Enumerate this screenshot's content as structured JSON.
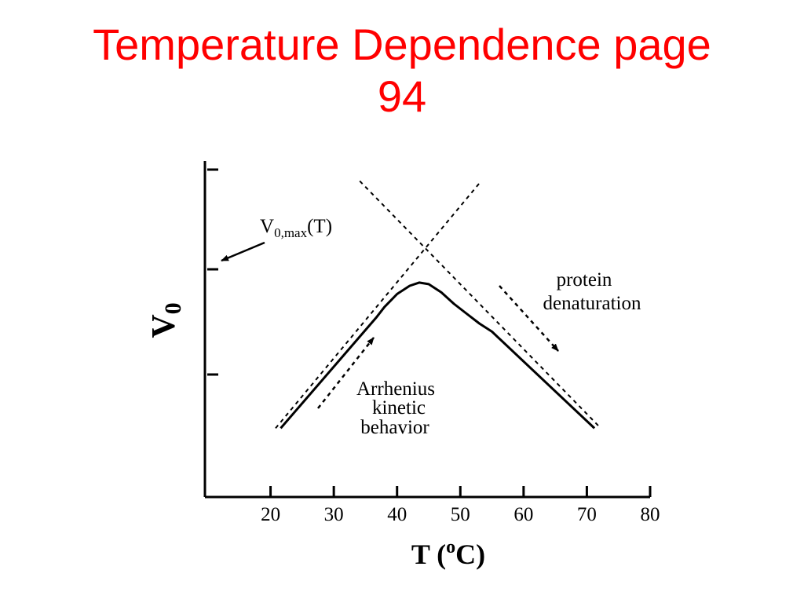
{
  "slide": {
    "title_line1": "Temperature Dependence page",
    "title_line2": "94",
    "title_color": "#ff0000"
  },
  "chart_data": {
    "type": "line",
    "xlabel": "T (",
    "xlabel_sup": "o",
    "xlabel_end": "C)",
    "ylabel": "V",
    "ylabel_sub": "0",
    "x_ticks": [
      20,
      30,
      40,
      50,
      60,
      70,
      80
    ],
    "xlim": [
      10,
      80
    ],
    "ylim": [
      0,
      1
    ],
    "y_ticks_labeled": false,
    "series": [
      {
        "style": "solid",
        "x": [
          21.6,
          36.8,
          38,
          40,
          42,
          43.5,
          45,
          47,
          49,
          51,
          53,
          55,
          71.2
        ],
        "y": [
          0.21,
          0.55,
          0.58,
          0.62,
          0.645,
          0.655,
          0.65,
          0.625,
          0.59,
          0.56,
          0.53,
          0.505,
          0.21
        ]
      },
      {
        "style": "dashed",
        "x": [
          20.8,
          53.3
        ],
        "y": [
          0.21,
          0.965
        ]
      },
      {
        "style": "dashed",
        "x": [
          34.1,
          72.2
        ],
        "y": [
          0.965,
          0.21
        ]
      }
    ],
    "annotations": {
      "vmax": {
        "text": "V",
        "sub": "0,max",
        "end": "(T)"
      },
      "protein_line1": "protein",
      "protein_line2": "denaturation",
      "arrhenius_line1": "Arrhenius",
      "arrhenius_line2": "kinetic",
      "arrhenius_line3": "behavior"
    },
    "grid": false
  }
}
